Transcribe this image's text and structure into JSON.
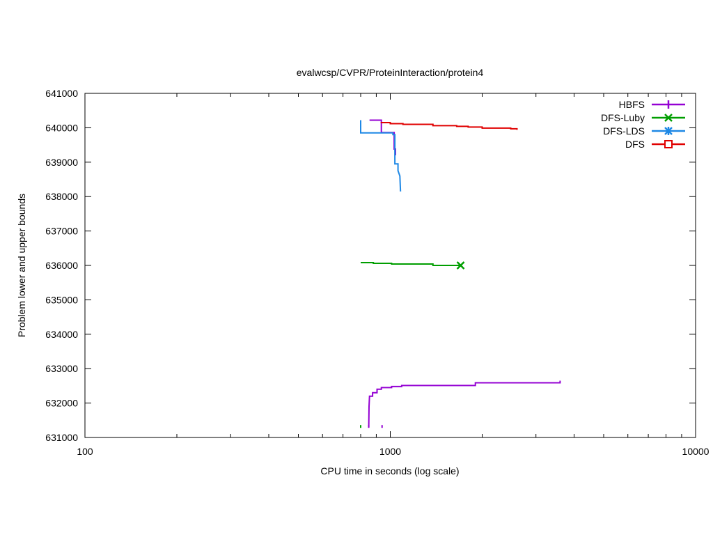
{
  "chart_data": {
    "type": "line",
    "title": "evalwcsp/CVPR/ProteinInteraction/protein4",
    "xlabel": "CPU time in seconds (log scale)",
    "ylabel": "Problem lower and upper bounds",
    "x_scale": "log",
    "xlim": [
      100,
      10000
    ],
    "ylim": [
      631000,
      641000
    ],
    "x_ticks": [
      100,
      1000,
      10000
    ],
    "x_tick_labels": [
      "100",
      "1000",
      "10000"
    ],
    "y_ticks": [
      631000,
      632000,
      633000,
      634000,
      635000,
      636000,
      637000,
      638000,
      639000,
      640000,
      641000
    ],
    "y_tick_labels": [
      "631000",
      "632000",
      "633000",
      "634000",
      "635000",
      "636000",
      "637000",
      "638000",
      "639000",
      "640000",
      "641000"
    ],
    "grid": false,
    "legend_position": "top-right",
    "series": [
      {
        "name": "HBFS",
        "color": "#9400d3",
        "marker": "plus",
        "upper": [
          [
            855,
            640220
          ],
          [
            935,
            640220
          ],
          [
            935,
            639860
          ],
          [
            1030,
            639860
          ],
          [
            1030,
            639380
          ],
          [
            1040,
            639380
          ],
          [
            1040,
            639200
          ]
        ],
        "lower": [
          [
            850,
            631300
          ],
          [
            852,
            631900
          ],
          [
            855,
            632200
          ],
          [
            875,
            632200
          ],
          [
            875,
            632300
          ],
          [
            905,
            632300
          ],
          [
            905,
            632400
          ],
          [
            935,
            632400
          ],
          [
            935,
            632450
          ],
          [
            1010,
            632450
          ],
          [
            1010,
            632480
          ],
          [
            1090,
            632480
          ],
          [
            1090,
            632510
          ],
          [
            1900,
            632510
          ],
          [
            1900,
            632590
          ],
          [
            3600,
            632590
          ],
          [
            3600,
            632650
          ]
        ],
        "marks": [
          [
            850,
            631320
          ],
          [
            940,
            631320
          ]
        ]
      },
      {
        "name": "DFS-Luby",
        "color": "#009e00",
        "marker": "x",
        "upper": [
          [
            800,
            636080
          ],
          [
            880,
            636080
          ],
          [
            880,
            636060
          ],
          [
            1010,
            636060
          ],
          [
            1010,
            636040
          ],
          [
            1380,
            636040
          ],
          [
            1380,
            636000
          ],
          [
            1700,
            636000
          ]
        ],
        "marks": [
          [
            800,
            631320
          ]
        ],
        "end_marker": [
          1700,
          636000
        ]
      },
      {
        "name": "DFS-LDS",
        "color": "#1e88e5",
        "marker": "star",
        "upper": [
          [
            800,
            640220
          ],
          [
            800,
            639850
          ],
          [
            1020,
            639850
          ],
          [
            1020,
            639800
          ],
          [
            1035,
            639800
          ],
          [
            1035,
            638950
          ],
          [
            1060,
            638950
          ],
          [
            1060,
            638750
          ],
          [
            1075,
            638600
          ],
          [
            1080,
            638150
          ]
        ]
      },
      {
        "name": "DFS",
        "color": "#e00000",
        "marker": "square",
        "upper": [
          [
            930,
            640150
          ],
          [
            1000,
            640150
          ],
          [
            1000,
            640120
          ],
          [
            1100,
            640120
          ],
          [
            1100,
            640100
          ],
          [
            1380,
            640100
          ],
          [
            1380,
            640060
          ],
          [
            1650,
            640060
          ],
          [
            1650,
            640040
          ],
          [
            1800,
            640040
          ],
          [
            1800,
            640020
          ],
          [
            2000,
            640020
          ],
          [
            2000,
            639990
          ],
          [
            2480,
            639990
          ],
          [
            2480,
            639970
          ],
          [
            2600,
            639970
          ],
          [
            2600,
            639940
          ]
        ]
      }
    ]
  }
}
